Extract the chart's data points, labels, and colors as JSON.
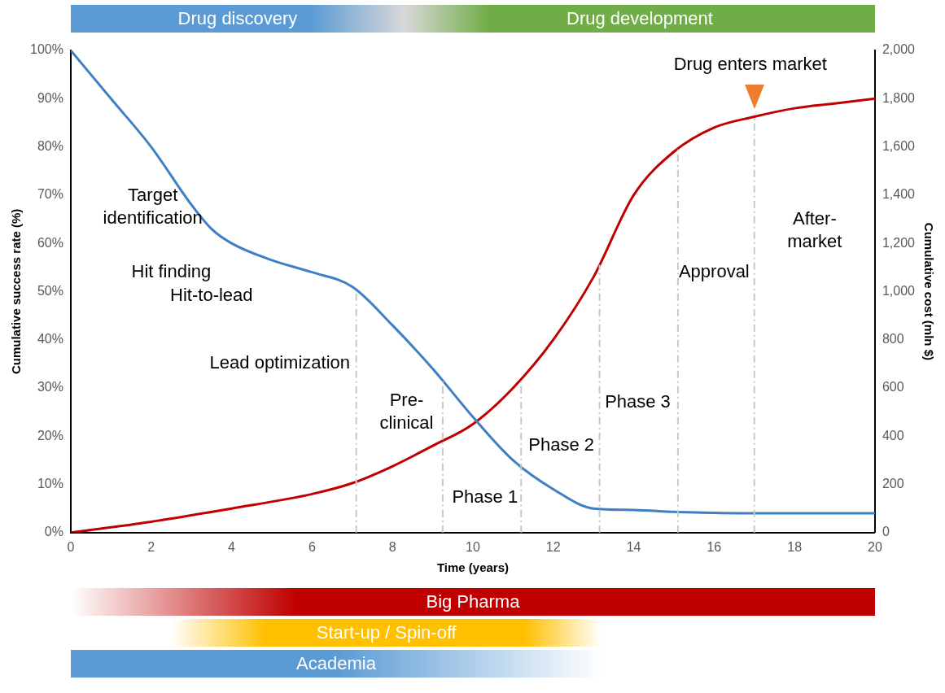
{
  "chart_data": {
    "type": "line",
    "xlabel": "Time (years)",
    "ylabel": "Cumulative success rate (%)",
    "y2label": "Cumulative cost (mln $)",
    "xlim": [
      0,
      20
    ],
    "xticks": [
      0,
      2,
      4,
      6,
      8,
      10,
      12,
      14,
      16,
      18,
      20
    ],
    "ylim": [
      0,
      100
    ],
    "yticks": [
      {
        "value": 0,
        "label": "0%"
      },
      {
        "value": 10,
        "label": "10%"
      },
      {
        "value": 20,
        "label": "20%"
      },
      {
        "value": 30,
        "label": "30%"
      },
      {
        "value": 40,
        "label": "40%"
      },
      {
        "value": 50,
        "label": "50%"
      },
      {
        "value": 60,
        "label": "60%"
      },
      {
        "value": 70,
        "label": "70%"
      },
      {
        "value": 80,
        "label": "80%"
      },
      {
        "value": 90,
        "label": "90%"
      },
      {
        "value": 100,
        "label": "100%"
      }
    ],
    "y2lim": [
      0,
      2000
    ],
    "y2ticks": [
      0,
      {
        "value": 200,
        "label": "200"
      },
      {
        "value": 400,
        "label": "400"
      },
      {
        "value": 600,
        "label": "600"
      },
      {
        "value": 800,
        "label": "800"
      },
      {
        "value": 1000,
        "label": "1,000"
      },
      {
        "value": 1200,
        "label": "1,200"
      },
      {
        "value": 1400,
        "label": "1,400"
      },
      {
        "value": 1600,
        "label": "1,600"
      },
      {
        "value": 1800,
        "label": "1,800"
      },
      {
        "value": 2000,
        "label": "2,000"
      }
    ],
    "marker": "none",
    "line_style": "solid",
    "legend": false,
    "grid": false,
    "series": [
      {
        "color": "#3f7fc4",
        "x": [
          0,
          1,
          2,
          3,
          3.5,
          4,
          5,
          6,
          7,
          8,
          9,
          10,
          11,
          12,
          13,
          14,
          15,
          16,
          17,
          18,
          19,
          20
        ],
        "values": [
          100,
          90,
          80,
          68,
          63,
          60,
          56.5,
          54,
          51,
          43,
          34,
          24,
          15,
          9,
          5,
          4.7,
          4.3,
          4.1,
          4,
          4,
          4,
          4
        ]
      },
      {
        "color": "#c00000",
        "axis": "y2",
        "x": [
          0,
          2,
          4,
          6,
          7,
          8,
          9,
          10,
          11,
          12,
          13,
          14,
          15,
          16,
          17,
          18,
          19,
          20
        ],
        "values": [
          0,
          45,
          100,
          160,
          205,
          275,
          360,
          450,
          600,
          800,
          1060,
          1400,
          1580,
          1680,
          1725,
          1760,
          1780,
          1800
        ]
      }
    ],
    "ref_lines": [
      {
        "axis": "x",
        "value": 7.1,
        "color": "#c8c8c8",
        "line_style": "dashed"
      },
      {
        "axis": "x",
        "value": 9.25,
        "color": "#c8c8c8",
        "line_style": "dashed"
      },
      {
        "axis": "x",
        "value": 11.2,
        "color": "#c8c8c8",
        "line_style": "dashed"
      },
      {
        "axis": "x",
        "value": 13.15,
        "color": "#c8c8c8",
        "line_style": "dashed"
      },
      {
        "axis": "x",
        "value": 15.1,
        "color": "#c8c8c8",
        "line_style": "dashed"
      },
      {
        "axis": "x",
        "value": 17,
        "color": "#c8c8c8",
        "line_style": "dashed"
      }
    ],
    "annotations": [
      "Target\nidentification",
      "Hit finding",
      "Hit-to-lead",
      "Lead optimization",
      "Pre-\nclinical",
      "Phase 1",
      "Phase 2",
      "Phase 3",
      "Approval",
      "After-\nmarket",
      "Drug enters market",
      "Drug discovery",
      "Drug development",
      "Big Pharma",
      "Start-up / Spin-off",
      "Academia"
    ]
  }
}
